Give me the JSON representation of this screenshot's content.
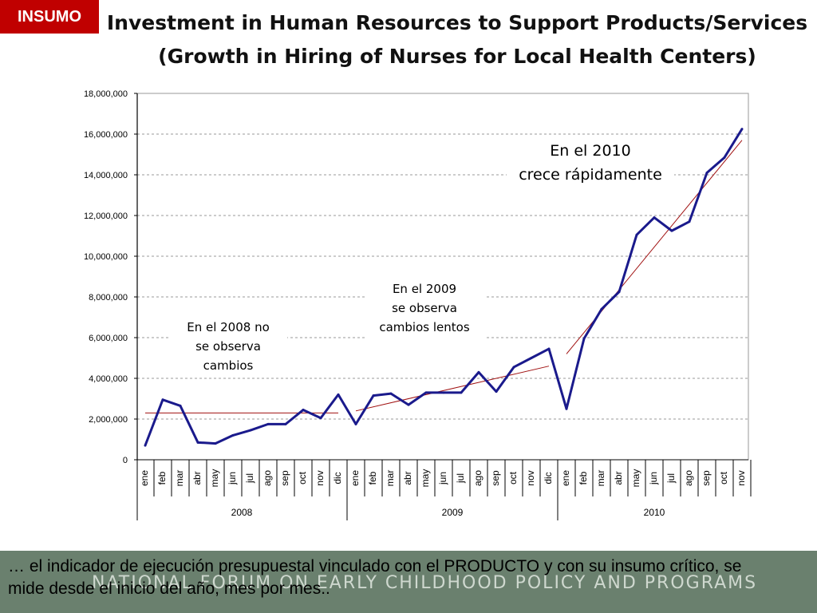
{
  "badge": "INSUMO",
  "title_line1": "Investment in Human Resources to Support Products/Services",
  "title_line2": "(Growth in Hiring of Nurses for Local Health Centers)",
  "footer": {
    "watermark": "NATIONAL FORUM ON EARLY CHILDHOOD POLICY AND PROGRAMS",
    "note": "…  el indicador de ejecución presupuestal vinculado con el PRODUCTO y con su insumo crítico, se mide desde el inicio del año, mes por mes.."
  },
  "colors": {
    "series": "#1a1a8c",
    "trend": "#a01010",
    "badge": "#c00000",
    "footer": "#6a806e"
  },
  "chart_data": {
    "type": "line",
    "ylim": [
      0,
      18000000
    ],
    "yticks": [
      0,
      2000000,
      4000000,
      6000000,
      8000000,
      10000000,
      12000000,
      14000000,
      16000000,
      18000000
    ],
    "ytick_labels": [
      "0",
      "2,000,000",
      "4,000,000",
      "6,000,000",
      "8,000,000",
      "10,000,000",
      "12,000,000",
      "14,000,000",
      "16,000,000",
      "18,000,000"
    ],
    "grid": true,
    "months": [
      "ene",
      "feb",
      "mar",
      "abr",
      "may",
      "jun",
      "jul",
      "ago",
      "sep",
      "oct",
      "nov",
      "dic",
      "ene",
      "feb",
      "mar",
      "abr",
      "may",
      "jun",
      "jul",
      "ago",
      "sep",
      "oct",
      "nov",
      "dic",
      "ene",
      "feb",
      "mar",
      "abr",
      "may",
      "jun",
      "jul",
      "ago",
      "sep",
      "oct",
      "nov"
    ],
    "years": [
      {
        "label": "2008",
        "start": 0,
        "count": 12
      },
      {
        "label": "2009",
        "start": 12,
        "count": 12
      },
      {
        "label": "2010",
        "start": 24,
        "count": 11
      }
    ],
    "values": [
      700000,
      2950000,
      2650000,
      850000,
      800000,
      1200000,
      1450000,
      1750000,
      1750000,
      2450000,
      2050000,
      3200000,
      1750000,
      3150000,
      3250000,
      2700000,
      3300000,
      3300000,
      3300000,
      4300000,
      3350000,
      4550000,
      5000000,
      5450000,
      2500000,
      5950000,
      7400000,
      8250000,
      11050000,
      11900000,
      11250000,
      11700000,
      14100000,
      14850000,
      16250000
    ],
    "trendlines": [
      {
        "from": 0,
        "to": 11,
        "y0": 2300000,
        "y1": 2300000
      },
      {
        "from": 12,
        "to": 23,
        "y0": 2400000,
        "y1": 4600000
      },
      {
        "from": 24,
        "to": 34,
        "y0": 5200000,
        "y1": 15700000
      }
    ],
    "annotations": [
      {
        "lines": [
          "En el 2008 no",
          "se observa",
          "cambios"
        ]
      },
      {
        "lines": [
          "En el 2009",
          "se observa",
          "cambios lentos"
        ]
      },
      {
        "lines": [
          "En el 2010",
          "crece rápidamente"
        ]
      }
    ]
  }
}
